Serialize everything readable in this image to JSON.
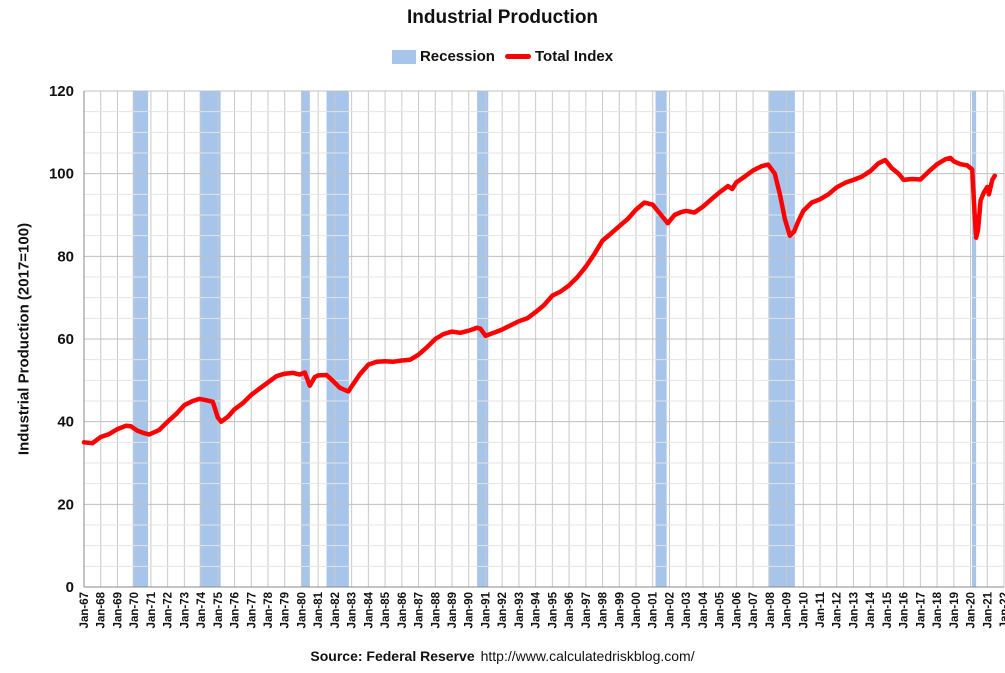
{
  "chart_data": {
    "type": "line",
    "title": "Industrial Production",
    "ylabel": "Industrial Production (2017=100)",
    "xlabel": "",
    "ylim": [
      0,
      120
    ],
    "yticks": [
      0,
      20,
      40,
      60,
      80,
      100,
      120
    ],
    "xlim": [
      1967.0,
      2022.0
    ],
    "grid": true,
    "legend_position": "top-center",
    "legend": [
      {
        "label": "Recession",
        "kind": "band",
        "color": "#a7c4ea"
      },
      {
        "label": "Total Index",
        "kind": "line",
        "color": "#ff0000"
      }
    ],
    "x_tick_labels": [
      "Jan-67",
      "Jan-68",
      "Jan-69",
      "Jan-70",
      "Jan-71",
      "Jan-72",
      "Jan-73",
      "Jan-74",
      "Jan-75",
      "Jan-76",
      "Jan-77",
      "Jan-78",
      "Jan-79",
      "Jan-80",
      "Jan-81",
      "Jan-82",
      "Jan-83",
      "Jan-84",
      "Jan-85",
      "Jan-86",
      "Jan-87",
      "Jan-88",
      "Jan-89",
      "Jan-90",
      "Jan-91",
      "Jan-92",
      "Jan-93",
      "Jan-94",
      "Jan-95",
      "Jan-96",
      "Jan-97",
      "Jan-98",
      "Jan-99",
      "Jan-00",
      "Jan-01",
      "Jan-02",
      "Jan-03",
      "Jan-04",
      "Jan-05",
      "Jan-06",
      "Jan-07",
      "Jan-08",
      "Jan-09",
      "Jan-10",
      "Jan-11",
      "Jan-12",
      "Jan-13",
      "Jan-14",
      "Jan-15",
      "Jan-16",
      "Jan-17",
      "Jan-18",
      "Jan-19",
      "Jan-20",
      "Jan-21",
      "Jan-22"
    ],
    "recessions": [
      {
        "start": 1969.917,
        "end": 1970.833
      },
      {
        "start": 1973.917,
        "end": 1975.167
      },
      {
        "start": 1980.0,
        "end": 1980.5
      },
      {
        "start": 1981.5,
        "end": 1982.833
      },
      {
        "start": 1990.5,
        "end": 1991.167
      },
      {
        "start": 2001.167,
        "end": 2001.833
      },
      {
        "start": 2007.917,
        "end": 2009.5
      },
      {
        "start": 2020.083,
        "end": 2020.333
      }
    ],
    "series": [
      {
        "name": "Total Index",
        "color": "#ff0000",
        "x": [
          1967.0,
          1967.5,
          1968.0,
          1968.5,
          1969.0,
          1969.5,
          1969.8,
          1970.2,
          1970.6,
          1970.9,
          1971.5,
          1972.0,
          1972.5,
          1973.0,
          1973.5,
          1973.9,
          1974.3,
          1974.7,
          1975.0,
          1975.2,
          1975.6,
          1976.0,
          1976.5,
          1977.0,
          1977.5,
          1978.0,
          1978.5,
          1979.0,
          1979.5,
          1979.9,
          1980.2,
          1980.5,
          1980.8,
          1981.0,
          1981.5,
          1981.9,
          1982.3,
          1982.8,
          1983.0,
          1983.5,
          1984.0,
          1984.5,
          1985.0,
          1985.5,
          1986.0,
          1986.5,
          1987.0,
          1987.5,
          1988.0,
          1988.5,
          1989.0,
          1989.5,
          1990.0,
          1990.5,
          1990.7,
          1991.0,
          1991.5,
          1992.0,
          1992.5,
          1993.0,
          1993.5,
          1994.0,
          1994.5,
          1995.0,
          1995.5,
          1996.0,
          1996.5,
          1997.0,
          1997.5,
          1998.0,
          1998.5,
          1999.0,
          1999.5,
          2000.0,
          2000.5,
          2001.0,
          2001.5,
          2001.9,
          2002.3,
          2002.7,
          2003.0,
          2003.5,
          2004.0,
          2004.5,
          2005.0,
          2005.5,
          2005.75,
          2006.0,
          2006.5,
          2007.0,
          2007.5,
          2007.9,
          2008.3,
          2008.6,
          2008.9,
          2009.2,
          2009.45,
          2009.7,
          2010.0,
          2010.5,
          2011.0,
          2011.5,
          2012.0,
          2012.5,
          2013.0,
          2013.5,
          2014.0,
          2014.5,
          2014.9,
          2015.3,
          2015.7,
          2016.0,
          2016.5,
          2017.0,
          2017.5,
          2018.0,
          2018.5,
          2018.8,
          2019.0,
          2019.4,
          2019.8,
          2020.1,
          2020.25,
          2020.33,
          2020.45,
          2020.6,
          2020.8,
          2021.0,
          2021.1,
          2021.3,
          2021.45
        ],
        "values": [
          35.0,
          34.8,
          36.3,
          37.0,
          38.2,
          39.0,
          38.9,
          37.8,
          37.2,
          36.9,
          38.0,
          40.0,
          41.8,
          44.0,
          45.0,
          45.5,
          45.2,
          44.8,
          41.0,
          40.0,
          41.2,
          43.0,
          44.5,
          46.5,
          48.0,
          49.5,
          51.0,
          51.6,
          51.8,
          51.4,
          51.9,
          48.7,
          50.8,
          51.2,
          51.3,
          49.8,
          48.2,
          47.3,
          48.5,
          51.5,
          53.8,
          54.5,
          54.6,
          54.5,
          54.8,
          55.0,
          56.2,
          58.0,
          60.0,
          61.2,
          61.8,
          61.5,
          62.0,
          62.7,
          62.5,
          60.8,
          61.5,
          62.3,
          63.3,
          64.3,
          65.0,
          66.5,
          68.2,
          70.5,
          71.5,
          73.0,
          75.0,
          77.5,
          80.5,
          83.8,
          85.5,
          87.3,
          89.0,
          91.3,
          93.0,
          92.5,
          90.0,
          88.0,
          90.0,
          90.7,
          91.0,
          90.6,
          92.0,
          93.8,
          95.5,
          97.0,
          96.3,
          97.9,
          99.3,
          100.8,
          101.8,
          102.2,
          100.0,
          95.0,
          89.0,
          85.0,
          86.0,
          88.5,
          91.0,
          93.0,
          93.8,
          95.0,
          96.7,
          97.8,
          98.5,
          99.3,
          100.6,
          102.5,
          103.3,
          101.3,
          100.0,
          98.5,
          98.7,
          98.6,
          100.5,
          102.3,
          103.5,
          103.8,
          103.0,
          102.3,
          102.0,
          101.0,
          90.0,
          84.5,
          86.5,
          93.5,
          95.5,
          96.8,
          95.0,
          98.5,
          99.5
        ]
      }
    ]
  },
  "source": {
    "label": "Source: Federal Reserve",
    "url": "http://www.calculatedriskblog.com/"
  }
}
